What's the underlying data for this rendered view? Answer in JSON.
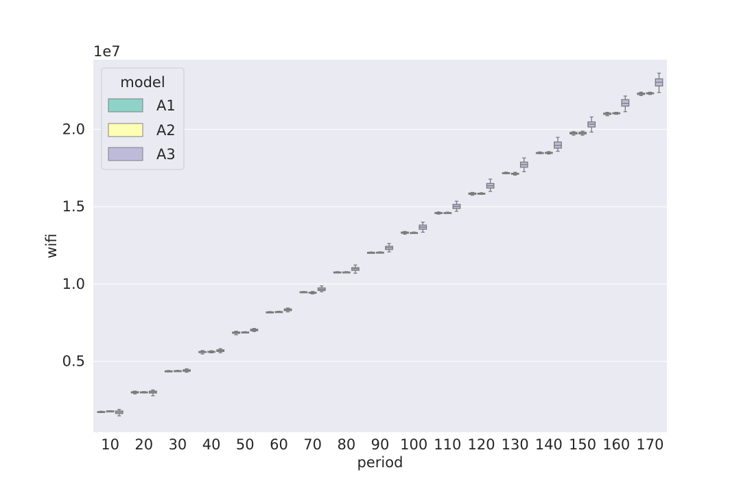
{
  "chart_data": {
    "type": "box",
    "xlabel": "period",
    "ylabel": "wifi",
    "offset_text": "1e7",
    "categories": [
      "10",
      "20",
      "30",
      "40",
      "50",
      "60",
      "70",
      "80",
      "90",
      "100",
      "110",
      "120",
      "130",
      "140",
      "150",
      "160",
      "170"
    ],
    "ylim": [
      420000,
      24500000
    ],
    "yticks": [
      5000000,
      10000000,
      15000000,
      20000000
    ],
    "ytick_labels": [
      "0.5",
      "1.0",
      "1.5",
      "2.0"
    ],
    "grid": true,
    "legend": {
      "title": "model",
      "placement": "top-left",
      "entries": [
        "A1",
        "A2",
        "A3"
      ]
    },
    "series": [
      {
        "name": "A1",
        "color": "#8dd3c7",
        "boxes": [
          {
            "min": 1700000,
            "q1": 1720000,
            "median": 1740000,
            "q3": 1760000,
            "max": 1780000
          },
          {
            "min": 2900000,
            "q1": 2960000,
            "median": 3000000,
            "q3": 3040000,
            "max": 3080000
          },
          {
            "min": 4320000,
            "q1": 4350000,
            "median": 4370000,
            "q3": 4390000,
            "max": 4410000
          },
          {
            "min": 5480000,
            "q1": 5570000,
            "median": 5600000,
            "q3": 5640000,
            "max": 5700000
          },
          {
            "min": 6720000,
            "q1": 6810000,
            "median": 6860000,
            "q3": 6900000,
            "max": 6950000
          },
          {
            "min": 8140000,
            "q1": 8160000,
            "median": 8180000,
            "q3": 8200000,
            "max": 8220000
          },
          {
            "min": 9440000,
            "q1": 9460000,
            "median": 9480000,
            "q3": 9500000,
            "max": 9520000
          },
          {
            "min": 10720000,
            "q1": 10740000,
            "median": 10760000,
            "q3": 10780000,
            "max": 10800000
          },
          {
            "min": 11990000,
            "q1": 12010000,
            "median": 12030000,
            "q3": 12050000,
            "max": 12070000
          },
          {
            "min": 13220000,
            "q1": 13280000,
            "median": 13320000,
            "q3": 13360000,
            "max": 13400000
          },
          {
            "min": 14520000,
            "q1": 14560000,
            "median": 14590000,
            "q3": 14620000,
            "max": 14660000
          },
          {
            "min": 15740000,
            "q1": 15800000,
            "median": 15840000,
            "q3": 15880000,
            "max": 15920000
          },
          {
            "min": 17130000,
            "q1": 17160000,
            "median": 17180000,
            "q3": 17200000,
            "max": 17230000
          },
          {
            "min": 18420000,
            "q1": 18460000,
            "median": 18480000,
            "q3": 18500000,
            "max": 18540000
          },
          {
            "min": 19620000,
            "q1": 19700000,
            "median": 19750000,
            "q3": 19800000,
            "max": 19850000
          },
          {
            "min": 20880000,
            "q1": 20960000,
            "median": 21000000,
            "q3": 21050000,
            "max": 21100000
          },
          {
            "min": 22180000,
            "q1": 22250000,
            "median": 22300000,
            "q3": 22340000,
            "max": 22400000
          }
        ]
      },
      {
        "name": "A2",
        "color": "#ffffb3",
        "boxes": [
          {
            "min": 1760000,
            "q1": 1780000,
            "median": 1790000,
            "q3": 1800000,
            "max": 1810000
          },
          {
            "min": 2960000,
            "q1": 2990000,
            "median": 3010000,
            "q3": 3030000,
            "max": 3050000
          },
          {
            "min": 4340000,
            "q1": 4360000,
            "median": 4380000,
            "q3": 4400000,
            "max": 4420000
          },
          {
            "min": 5550000,
            "q1": 5590000,
            "median": 5620000,
            "q3": 5650000,
            "max": 5690000
          },
          {
            "min": 6840000,
            "q1": 6860000,
            "median": 6880000,
            "q3": 6900000,
            "max": 6920000
          },
          {
            "min": 8180000,
            "q1": 8200000,
            "median": 8210000,
            "q3": 8220000,
            "max": 8240000
          },
          {
            "min": 9360000,
            "q1": 9410000,
            "median": 9440000,
            "q3": 9470000,
            "max": 9520000
          },
          {
            "min": 10740000,
            "q1": 10760000,
            "median": 10770000,
            "q3": 10780000,
            "max": 10800000
          },
          {
            "min": 12020000,
            "q1": 12040000,
            "median": 12050000,
            "q3": 12060000,
            "max": 12080000
          },
          {
            "min": 13280000,
            "q1": 13310000,
            "median": 13320000,
            "q3": 13330000,
            "max": 13360000
          },
          {
            "min": 14580000,
            "q1": 14600000,
            "median": 14610000,
            "q3": 14620000,
            "max": 14650000
          },
          {
            "min": 15800000,
            "q1": 15830000,
            "median": 15850000,
            "q3": 15870000,
            "max": 15900000
          },
          {
            "min": 17040000,
            "q1": 17100000,
            "median": 17130000,
            "q3": 17160000,
            "max": 17220000
          },
          {
            "min": 18400000,
            "q1": 18450000,
            "median": 18480000,
            "q3": 18510000,
            "max": 18560000
          },
          {
            "min": 19620000,
            "q1": 19700000,
            "median": 19760000,
            "q3": 19810000,
            "max": 19880000
          },
          {
            "min": 20970000,
            "q1": 21010000,
            "median": 21040000,
            "q3": 21070000,
            "max": 21100000
          },
          {
            "min": 22250000,
            "q1": 22300000,
            "median": 22330000,
            "q3": 22360000,
            "max": 22400000
          }
        ]
      },
      {
        "name": "A3",
        "color": "#bebada",
        "boxes": [
          {
            "min": 1480000,
            "q1": 1630000,
            "median": 1720000,
            "q3": 1800000,
            "max": 1900000
          },
          {
            "min": 2780000,
            "q1": 2950000,
            "median": 3020000,
            "q3": 3080000,
            "max": 3150000
          },
          {
            "min": 4300000,
            "q1": 4360000,
            "median": 4400000,
            "q3": 4460000,
            "max": 4520000
          },
          {
            "min": 5560000,
            "q1": 5640000,
            "median": 5690000,
            "q3": 5750000,
            "max": 5820000
          },
          {
            "min": 6930000,
            "q1": 6980000,
            "median": 7030000,
            "q3": 7080000,
            "max": 7130000
          },
          {
            "min": 8200000,
            "q1": 8280000,
            "median": 8330000,
            "q3": 8390000,
            "max": 8450000
          },
          {
            "min": 9500000,
            "q1": 9580000,
            "median": 9660000,
            "q3": 9750000,
            "max": 9880000
          },
          {
            "min": 10700000,
            "q1": 10880000,
            "median": 10980000,
            "q3": 11060000,
            "max": 11230000
          },
          {
            "min": 12080000,
            "q1": 12230000,
            "median": 12340000,
            "q3": 12440000,
            "max": 12620000
          },
          {
            "min": 13350000,
            "q1": 13540000,
            "median": 13680000,
            "q3": 13810000,
            "max": 14000000
          },
          {
            "min": 14700000,
            "q1": 14880000,
            "median": 15020000,
            "q3": 15150000,
            "max": 15350000
          },
          {
            "min": 15990000,
            "q1": 16200000,
            "median": 16350000,
            "q3": 16500000,
            "max": 16780000
          },
          {
            "min": 17260000,
            "q1": 17550000,
            "median": 17720000,
            "q3": 17880000,
            "max": 18150000
          },
          {
            "min": 18580000,
            "q1": 18780000,
            "median": 18960000,
            "q3": 19180000,
            "max": 19480000
          },
          {
            "min": 19820000,
            "q1": 20150000,
            "median": 20330000,
            "q3": 20480000,
            "max": 20800000
          },
          {
            "min": 21140000,
            "q1": 21500000,
            "median": 21680000,
            "q3": 21920000,
            "max": 22150000
          },
          {
            "min": 22380000,
            "q1": 22800000,
            "median": 23040000,
            "q3": 23260000,
            "max": 23630000
          }
        ]
      }
    ]
  }
}
